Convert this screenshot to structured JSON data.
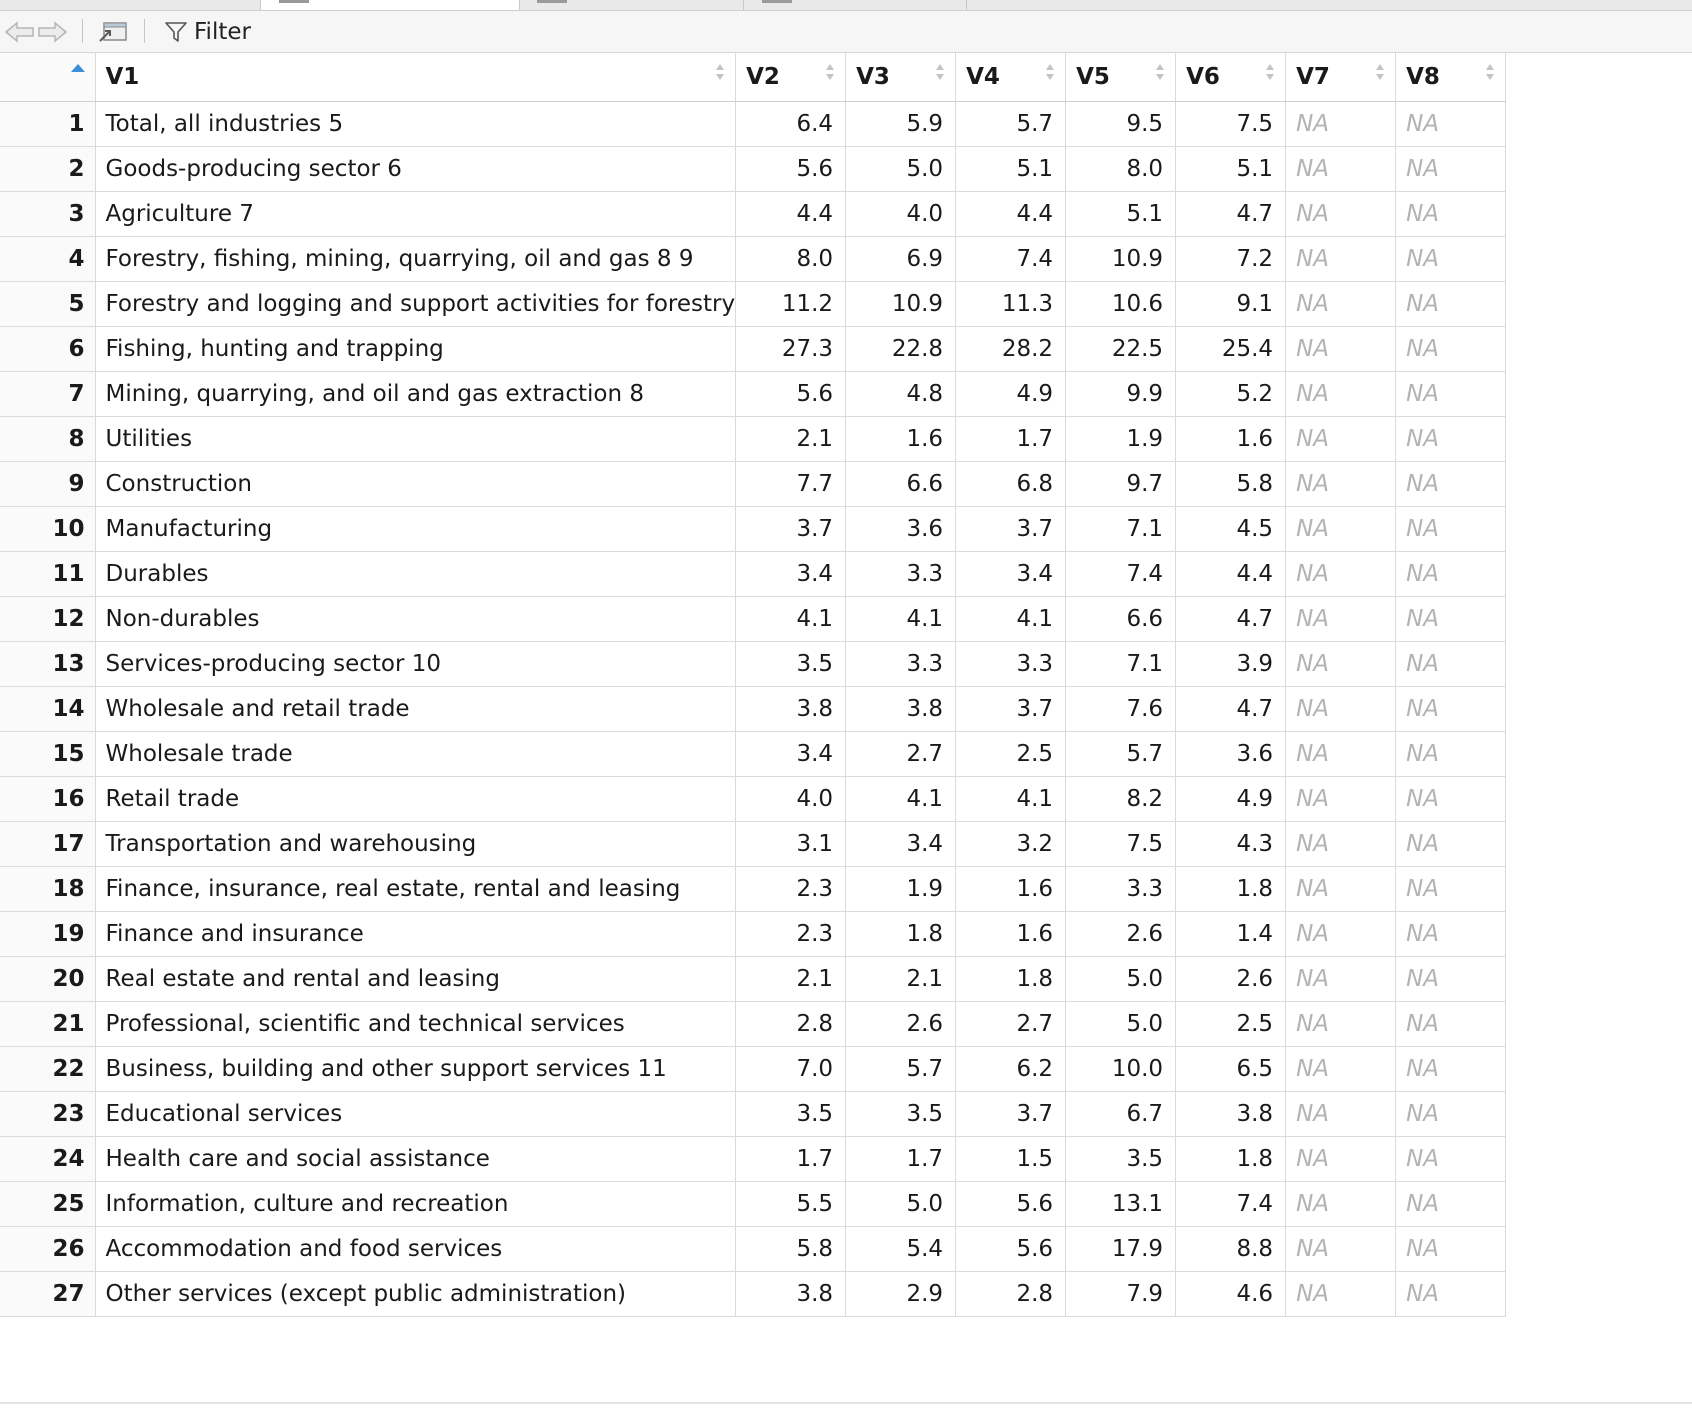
{
  "toolbar": {
    "filter_label": "Filter",
    "icons": [
      "back-arrow-icon",
      "forward-arrow-icon",
      "popout-icon",
      "filter-icon"
    ]
  },
  "columns": [
    "V1",
    "V2",
    "V3",
    "V4",
    "V5",
    "V6",
    "V7",
    "V8"
  ],
  "rows": [
    {
      "n": "1",
      "v": [
        "Total, all industries 5",
        "6.4",
        "5.9",
        "5.7",
        "9.5",
        "7.5",
        "NA",
        "NA"
      ]
    },
    {
      "n": "2",
      "v": [
        "Goods-producing sector 6",
        "5.6",
        "5.0",
        "5.1",
        "8.0",
        "5.1",
        "NA",
        "NA"
      ]
    },
    {
      "n": "3",
      "v": [
        "Agriculture 7",
        "4.4",
        "4.0",
        "4.4",
        "5.1",
        "4.7",
        "NA",
        "NA"
      ]
    },
    {
      "n": "4",
      "v": [
        "Forestry, fishing, mining, quarrying, oil and gas 8 9",
        "8.0",
        "6.9",
        "7.4",
        "10.9",
        "7.2",
        "NA",
        "NA"
      ]
    },
    {
      "n": "5",
      "v": [
        "Forestry and logging and support activities for forestry",
        "11.2",
        "10.9",
        "11.3",
        "10.6",
        "9.1",
        "NA",
        "NA"
      ]
    },
    {
      "n": "6",
      "v": [
        "Fishing, hunting and trapping",
        "27.3",
        "22.8",
        "28.2",
        "22.5",
        "25.4",
        "NA",
        "NA"
      ]
    },
    {
      "n": "7",
      "v": [
        "Mining, quarrying, and oil and gas extraction 8",
        "5.6",
        "4.8",
        "4.9",
        "9.9",
        "5.2",
        "NA",
        "NA"
      ]
    },
    {
      "n": "8",
      "v": [
        "Utilities",
        "2.1",
        "1.6",
        "1.7",
        "1.9",
        "1.6",
        "NA",
        "NA"
      ]
    },
    {
      "n": "9",
      "v": [
        "Construction",
        "7.7",
        "6.6",
        "6.8",
        "9.7",
        "5.8",
        "NA",
        "NA"
      ]
    },
    {
      "n": "10",
      "v": [
        "Manufacturing",
        "3.7",
        "3.6",
        "3.7",
        "7.1",
        "4.5",
        "NA",
        "NA"
      ]
    },
    {
      "n": "11",
      "v": [
        "Durables",
        "3.4",
        "3.3",
        "3.4",
        "7.4",
        "4.4",
        "NA",
        "NA"
      ]
    },
    {
      "n": "12",
      "v": [
        "Non-durables",
        "4.1",
        "4.1",
        "4.1",
        "6.6",
        "4.7",
        "NA",
        "NA"
      ]
    },
    {
      "n": "13",
      "v": [
        "Services-producing sector 10",
        "3.5",
        "3.3",
        "3.3",
        "7.1",
        "3.9",
        "NA",
        "NA"
      ]
    },
    {
      "n": "14",
      "v": [
        "Wholesale and retail trade",
        "3.8",
        "3.8",
        "3.7",
        "7.6",
        "4.7",
        "NA",
        "NA"
      ]
    },
    {
      "n": "15",
      "v": [
        "Wholesale trade",
        "3.4",
        "2.7",
        "2.5",
        "5.7",
        "3.6",
        "NA",
        "NA"
      ]
    },
    {
      "n": "16",
      "v": [
        "Retail trade",
        "4.0",
        "4.1",
        "4.1",
        "8.2",
        "4.9",
        "NA",
        "NA"
      ]
    },
    {
      "n": "17",
      "v": [
        "Transportation and warehousing",
        "3.1",
        "3.4",
        "3.2",
        "7.5",
        "4.3",
        "NA",
        "NA"
      ]
    },
    {
      "n": "18",
      "v": [
        "Finance, insurance, real estate, rental and leasing",
        "2.3",
        "1.9",
        "1.6",
        "3.3",
        "1.8",
        "NA",
        "NA"
      ]
    },
    {
      "n": "19",
      "v": [
        "Finance and insurance",
        "2.3",
        "1.8",
        "1.6",
        "2.6",
        "1.4",
        "NA",
        "NA"
      ]
    },
    {
      "n": "20",
      "v": [
        "Real estate and rental and leasing",
        "2.1",
        "2.1",
        "1.8",
        "5.0",
        "2.6",
        "NA",
        "NA"
      ]
    },
    {
      "n": "21",
      "v": [
        "Professional, scientific and technical services",
        "2.8",
        "2.6",
        "2.7",
        "5.0",
        "2.5",
        "NA",
        "NA"
      ]
    },
    {
      "n": "22",
      "v": [
        "Business, building and other support services 11",
        "7.0",
        "5.7",
        "6.2",
        "10.0",
        "6.5",
        "NA",
        "NA"
      ]
    },
    {
      "n": "23",
      "v": [
        "Educational services",
        "3.5",
        "3.5",
        "3.7",
        "6.7",
        "3.8",
        "NA",
        "NA"
      ]
    },
    {
      "n": "24",
      "v": [
        "Health care and social assistance",
        "1.7",
        "1.7",
        "1.5",
        "3.5",
        "1.8",
        "NA",
        "NA"
      ]
    },
    {
      "n": "25",
      "v": [
        "Information, culture and recreation",
        "5.5",
        "5.0",
        "5.6",
        "13.1",
        "7.4",
        "NA",
        "NA"
      ]
    },
    {
      "n": "26",
      "v": [
        "Accommodation and food services",
        "5.8",
        "5.4",
        "5.6",
        "17.9",
        "8.8",
        "NA",
        "NA"
      ]
    },
    {
      "n": "27",
      "v": [
        "Other services (except public administration)",
        "3.8",
        "2.9",
        "2.8",
        "7.9",
        "4.6",
        "NA",
        "NA"
      ]
    }
  ],
  "colors": {
    "sort_active": "#3a8fd9",
    "na_text": "#b3b3b3",
    "grid_line": "#dadada"
  }
}
